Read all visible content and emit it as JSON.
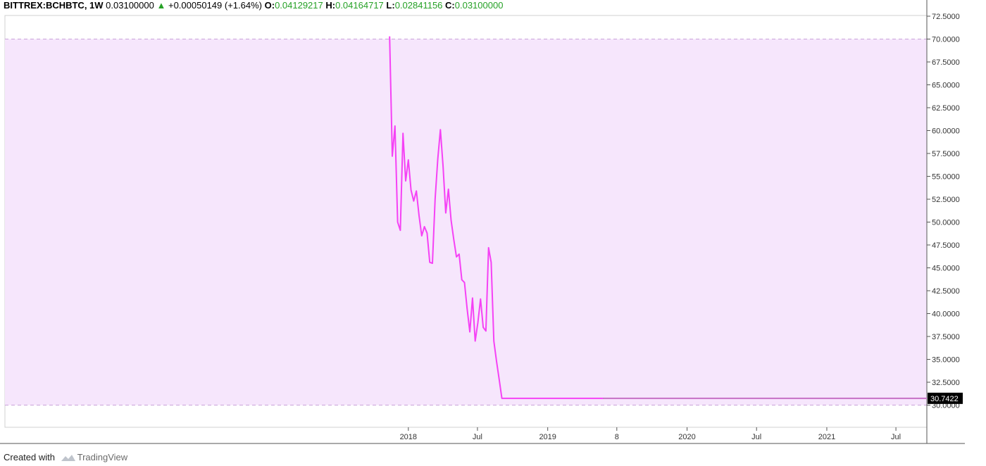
{
  "header": {
    "symbol": "BITTREX:BCHBTC, 1W",
    "last": "0.03100000",
    "change": "+0.00050149 (+1.64%)",
    "open_label": "O:",
    "open": "0.04129217",
    "high_label": "H:",
    "high": "0.04164717",
    "low_label": "L:",
    "low": "0.02841156",
    "close_label": "C:",
    "close": "0.03100000"
  },
  "footer": {
    "created_with": "Created with",
    "brand": "TradingView",
    "logo_icon": "tradingview-logo-icon"
  },
  "colors": {
    "line": "#f542f5",
    "band_fill": "#f6e6fc",
    "band_border": "#c9a3d9",
    "axis": "#555555",
    "price_label_bg": "#000000"
  },
  "chart_data": {
    "type": "line",
    "title": "",
    "xlabel": "",
    "ylabel": "",
    "ylim": [
      27.5,
      72.5
    ],
    "y_ticks": [
      "30.0000",
      "32.5000",
      "35.0000",
      "37.5000",
      "40.0000",
      "42.5000",
      "45.0000",
      "47.5000",
      "50.0000",
      "52.5000",
      "55.0000",
      "57.5000",
      "60.0000",
      "62.5000",
      "65.0000",
      "67.5000",
      "70.0000",
      "72.5000"
    ],
    "x_ticks": [
      "2018",
      "Jul",
      "2019",
      "8",
      "2020",
      "Jul",
      "2021",
      "Jul"
    ],
    "x_tick_dates": [
      "2018-01-01",
      "2018-07-01",
      "2019-01-01",
      "2019-07-01",
      "2020-01-01",
      "2020-07-01",
      "2021-01-01",
      "2021-07-01"
    ],
    "x_range": [
      "2015-02-02",
      "2021-09-20"
    ],
    "band": {
      "upper": 70.0,
      "lower": 30.0
    },
    "last_value_label": "30.7422",
    "grid": false,
    "series": [
      {
        "x": [
          "2017-11-13",
          "2017-11-20",
          "2017-11-27",
          "2017-12-04",
          "2017-12-11",
          "2017-12-18",
          "2017-12-25",
          "2018-01-01",
          "2018-01-08",
          "2018-01-15",
          "2018-01-22",
          "2018-01-29",
          "2018-02-05",
          "2018-02-12",
          "2018-02-19",
          "2018-02-26",
          "2018-03-05",
          "2018-03-12",
          "2018-03-19",
          "2018-03-26",
          "2018-04-02",
          "2018-04-09",
          "2018-04-16",
          "2018-04-23",
          "2018-04-30",
          "2018-05-07",
          "2018-05-14",
          "2018-05-21",
          "2018-05-28",
          "2018-06-04",
          "2018-06-11",
          "2018-06-18",
          "2018-06-25",
          "2018-07-02",
          "2018-07-09",
          "2018-07-16",
          "2018-07-23",
          "2018-07-30",
          "2018-08-06",
          "2018-08-13",
          "2018-08-20",
          "2018-08-27",
          "2018-09-03",
          "2018-09-10",
          "2018-09-17",
          "2018-09-24",
          "2018-10-01",
          "2018-10-08",
          "2018-10-15",
          "2018-10-22",
          "2018-10-29",
          "2018-11-05",
          "2018-11-12",
          "2018-11-19",
          "2018-11-26",
          "2021-09-20"
        ],
        "values": [
          70.3,
          57.2,
          60.5,
          50.0,
          49.1,
          59.7,
          54.5,
          56.8,
          53.5,
          52.3,
          53.4,
          50.7,
          48.5,
          49.5,
          48.8,
          45.6,
          45.5,
          52.5,
          56.9,
          60.1,
          56.1,
          51.0,
          53.6,
          50.2,
          48.1,
          46.2,
          46.5,
          43.7,
          43.4,
          40.5,
          38.0,
          41.7,
          37.0,
          39.0,
          41.6,
          38.5,
          38.1,
          47.2,
          45.6,
          37.0,
          34.8,
          32.8,
          30.7422,
          30.7422,
          30.7422,
          30.7422,
          30.7422,
          30.7422,
          30.7422,
          30.7422,
          30.7422,
          30.7422,
          30.7422,
          30.7422,
          30.7422,
          30.7422
        ]
      }
    ]
  }
}
